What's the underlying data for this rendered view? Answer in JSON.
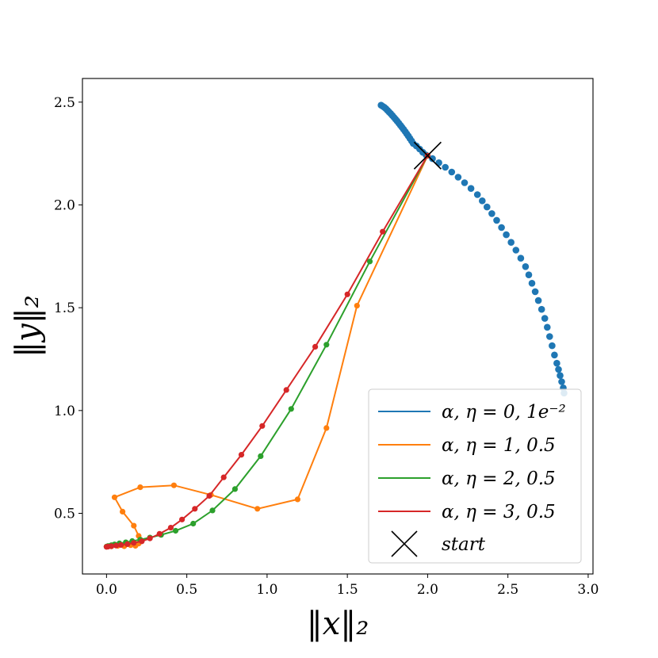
{
  "chart_data": {
    "type": "line",
    "xlabel": "‖x‖₂",
    "ylabel": "‖y‖₂",
    "xlim": [
      -0.15,
      3.03
    ],
    "ylim": [
      0.205,
      2.615
    ],
    "xticks": [
      "0.0",
      "0.5",
      "1.0",
      "1.5",
      "2.0",
      "2.5",
      "3.0"
    ],
    "yticks": [
      "0.5",
      "1.0",
      "1.5",
      "2.0",
      "2.5"
    ],
    "legend_placement": "lower-right",
    "grid": false,
    "start": {
      "label": "start",
      "x": 2.0,
      "y": 2.24
    },
    "series": [
      {
        "name": "α, η = 0, 1e⁻²",
        "color": "#1f77b4",
        "points": [
          [
            1.71,
            2.485
          ],
          [
            1.72,
            2.48
          ],
          [
            1.73,
            2.475
          ],
          [
            1.74,
            2.468
          ],
          [
            1.75,
            2.46
          ],
          [
            1.76,
            2.452
          ],
          [
            1.77,
            2.444
          ],
          [
            1.78,
            2.435
          ],
          [
            1.79,
            2.426
          ],
          [
            1.8,
            2.417
          ],
          [
            1.81,
            2.408
          ],
          [
            1.82,
            2.398
          ],
          [
            1.83,
            2.388
          ],
          [
            1.84,
            2.378
          ],
          [
            1.85,
            2.368
          ],
          [
            1.86,
            2.357
          ],
          [
            1.87,
            2.346
          ],
          [
            1.88,
            2.335
          ],
          [
            1.89,
            2.323
          ],
          [
            1.9,
            2.311
          ],
          [
            1.91,
            2.299
          ],
          [
            1.93,
            2.287
          ],
          [
            1.95,
            2.272
          ],
          [
            1.97,
            2.256
          ],
          [
            1.99,
            2.243
          ],
          [
            2.03,
            2.225
          ],
          [
            2.07,
            2.205
          ],
          [
            2.11,
            2.183
          ],
          [
            2.15,
            2.16
          ],
          [
            2.19,
            2.135
          ],
          [
            2.23,
            2.108
          ],
          [
            2.27,
            2.08
          ],
          [
            2.31,
            2.05
          ],
          [
            2.34,
            2.02
          ],
          [
            2.37,
            1.99
          ],
          [
            2.4,
            1.958
          ],
          [
            2.43,
            1.925
          ],
          [
            2.46,
            1.89
          ],
          [
            2.49,
            1.855
          ],
          [
            2.52,
            1.818
          ],
          [
            2.55,
            1.78
          ],
          [
            2.58,
            1.741
          ],
          [
            2.61,
            1.7
          ],
          [
            2.63,
            1.66
          ],
          [
            2.65,
            1.619
          ],
          [
            2.67,
            1.578
          ],
          [
            2.69,
            1.535
          ],
          [
            2.71,
            1.492
          ],
          [
            2.73,
            1.448
          ],
          [
            2.745,
            1.405
          ],
          [
            2.76,
            1.36
          ],
          [
            2.775,
            1.315
          ],
          [
            2.79,
            1.27
          ],
          [
            2.805,
            1.23
          ],
          [
            2.815,
            1.2
          ],
          [
            2.825,
            1.17
          ],
          [
            2.835,
            1.14
          ],
          [
            2.845,
            1.11
          ],
          [
            2.85,
            1.085
          ]
        ]
      },
      {
        "name": "α, η = 1, 0.5",
        "color": "#ff7f0e",
        "points": [
          [
            2.0,
            2.24
          ],
          [
            1.56,
            1.51
          ],
          [
            1.37,
            0.915
          ],
          [
            1.19,
            0.568
          ],
          [
            0.94,
            0.522
          ],
          [
            0.65,
            0.59
          ],
          [
            0.42,
            0.636
          ],
          [
            0.21,
            0.627
          ],
          [
            0.05,
            0.578
          ],
          [
            0.1,
            0.508
          ],
          [
            0.17,
            0.44
          ],
          [
            0.2,
            0.39
          ],
          [
            0.2,
            0.353
          ],
          [
            0.18,
            0.342
          ],
          [
            0.15,
            0.345
          ],
          [
            0.11,
            0.34
          ],
          [
            0.07,
            0.342
          ],
          [
            0.03,
            0.339
          ],
          [
            0.0,
            0.338
          ]
        ]
      },
      {
        "name": "α, η = 2, 0.5",
        "color": "#2ca02c",
        "points": [
          [
            2.0,
            2.24
          ],
          [
            1.64,
            1.725
          ],
          [
            1.37,
            1.32
          ],
          [
            1.15,
            1.008
          ],
          [
            0.96,
            0.778
          ],
          [
            0.8,
            0.618
          ],
          [
            0.66,
            0.514
          ],
          [
            0.54,
            0.45
          ],
          [
            0.43,
            0.415
          ],
          [
            0.34,
            0.395
          ],
          [
            0.27,
            0.382
          ],
          [
            0.21,
            0.372
          ],
          [
            0.16,
            0.365
          ],
          [
            0.12,
            0.359
          ],
          [
            0.08,
            0.354
          ],
          [
            0.05,
            0.349
          ],
          [
            0.03,
            0.345
          ],
          [
            0.01,
            0.341
          ],
          [
            0.0,
            0.338
          ]
        ]
      },
      {
        "name": "α, η = 3, 0.5",
        "color": "#d62728",
        "points": [
          [
            2.0,
            2.24
          ],
          [
            1.72,
            1.87
          ],
          [
            1.5,
            1.565
          ],
          [
            1.3,
            1.31
          ],
          [
            1.12,
            1.1
          ],
          [
            0.97,
            0.925
          ],
          [
            0.84,
            0.785
          ],
          [
            0.73,
            0.675
          ],
          [
            0.64,
            0.585
          ],
          [
            0.55,
            0.522
          ],
          [
            0.47,
            0.47
          ],
          [
            0.4,
            0.43
          ],
          [
            0.33,
            0.4
          ],
          [
            0.27,
            0.378
          ],
          [
            0.22,
            0.364
          ],
          [
            0.17,
            0.356
          ],
          [
            0.13,
            0.35
          ],
          [
            0.09,
            0.346
          ],
          [
            0.06,
            0.343
          ],
          [
            0.03,
            0.34
          ],
          [
            0.01,
            0.338
          ],
          [
            0.0,
            0.337
          ]
        ]
      }
    ]
  }
}
